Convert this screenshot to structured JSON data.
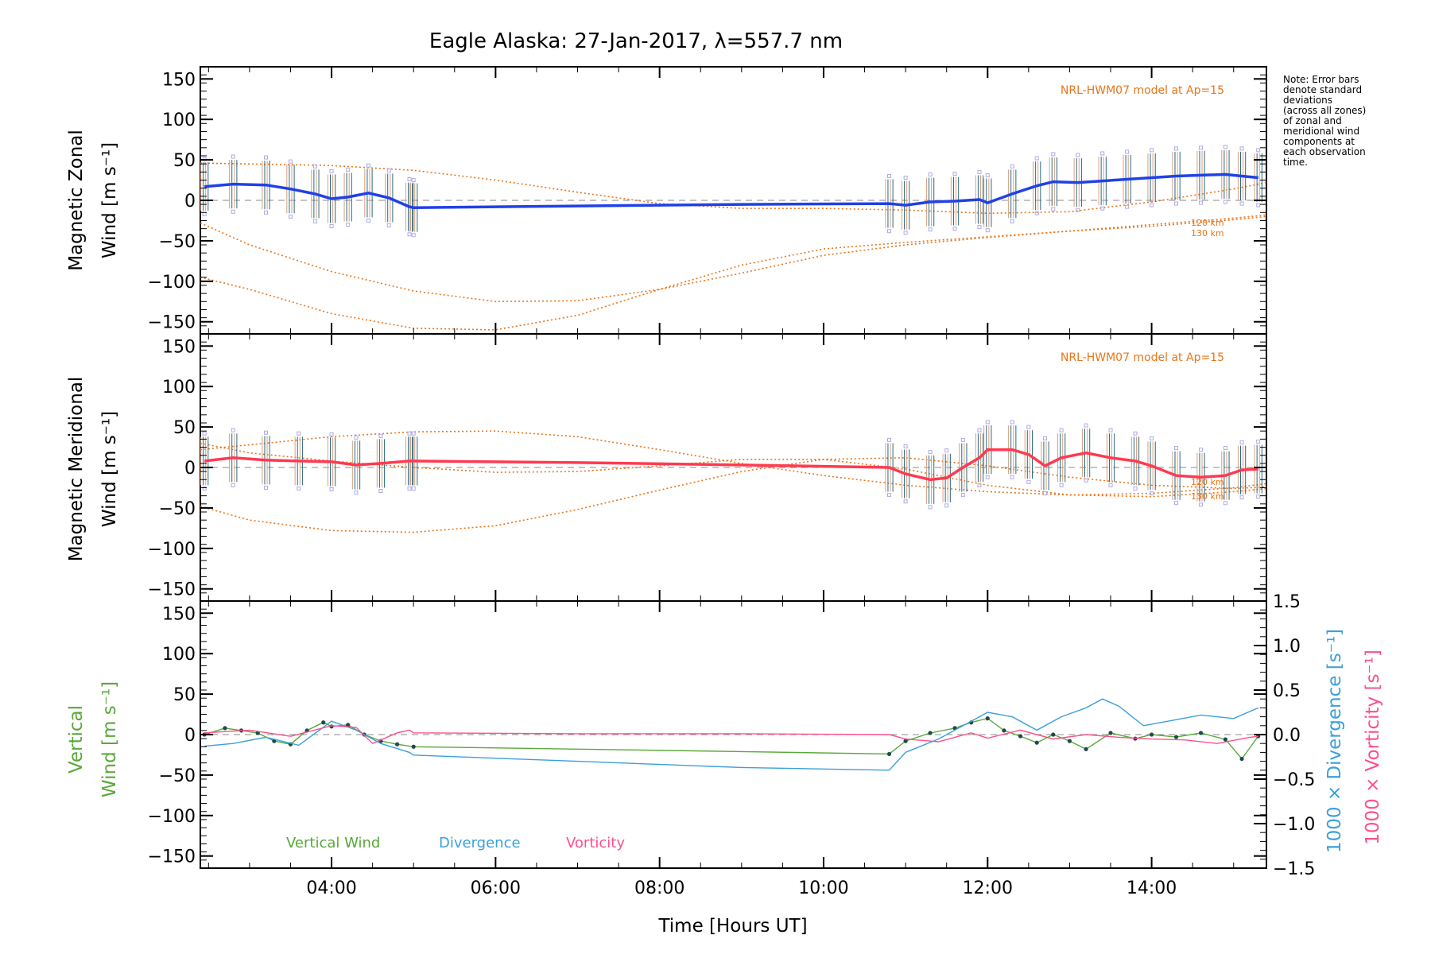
{
  "title": "Eagle Alaska: 27-Jan-2017, λ=557.7 nm",
  "note": [
    "Note: Error bars",
    "denote standard",
    "deviations",
    "(across all zones)",
    "of zonal and",
    "meridional wind",
    "components at",
    "each observation",
    "time."
  ],
  "xlabel": "Time [Hours UT]",
  "chart_data": [
    {
      "type": "line",
      "id": "zonal",
      "ylabel": [
        "Magnetic Zonal",
        "Wind [m s⁻¹]"
      ],
      "xlim": [
        2.4,
        15.4
      ],
      "ylim": [
        -165,
        165
      ],
      "y_ticks": [
        -150,
        -100,
        -50,
        0,
        50,
        100,
        150
      ],
      "y_tick_labels": [
        "−150",
        "−100",
        "−50",
        "0",
        "50",
        "100",
        "150"
      ],
      "model_label": "NRL-HWM07 model at Ap=15",
      "model_alt_labels": [
        "120 km",
        "130 km"
      ],
      "series": [
        {
          "role": "mean",
          "color": "#2040e8",
          "x": [
            2.45,
            2.8,
            3.2,
            3.5,
            3.8,
            4.0,
            4.2,
            4.45,
            4.7,
            4.95,
            5.0,
            7.0,
            9.0,
            10.8,
            11.0,
            11.3,
            11.6,
            11.9,
            12.0,
            12.3,
            12.6,
            12.8,
            13.1,
            13.4,
            13.7,
            14.0,
            14.3,
            14.6,
            14.9,
            15.1,
            15.3
          ],
          "y": [
            17,
            20,
            19,
            14,
            8,
            2,
            4,
            9,
            3,
            -8,
            -9,
            -7,
            -5,
            -4,
            -6,
            -2,
            -1,
            1,
            -3,
            8,
            18,
            23,
            22,
            24,
            26,
            28,
            30,
            31,
            32,
            30,
            28
          ]
        },
        {
          "role": "model-high",
          "color": "#e8761a",
          "x": [
            2.4,
            3.0,
            4.0,
            5.0,
            6.0,
            7.0,
            8.0,
            9.0,
            10.0,
            11.0,
            12.0,
            13.0,
            14.0,
            15.0,
            15.4
          ],
          "y": [
            46,
            45,
            43,
            37,
            25,
            10,
            -4,
            -10,
            -10,
            -12,
            -16,
            -14,
            -2,
            14,
            22
          ]
        },
        {
          "role": "model-mid",
          "color": "#e8761a",
          "x": [
            2.4,
            3.0,
            4.0,
            5.0,
            6.0,
            7.0,
            8.0,
            9.0,
            10.0,
            11.0,
            12.0,
            13.0,
            14.0,
            15.0,
            15.4
          ],
          "y": [
            -28,
            -55,
            -88,
            -112,
            -125,
            -124,
            -110,
            -90,
            -68,
            -55,
            -46,
            -38,
            -30,
            -22,
            -18
          ]
        },
        {
          "role": "model-low",
          "color": "#e8761a",
          "x": [
            2.4,
            3.0,
            4.0,
            5.0,
            6.0,
            7.0,
            8.0,
            9.0,
            10.0,
            11.0,
            12.0,
            13.0,
            14.0,
            15.0,
            15.4
          ],
          "y": [
            -95,
            -110,
            -140,
            -158,
            -160,
            -142,
            -110,
            -80,
            -60,
            -52,
            -45,
            -38,
            -32,
            -24,
            -20
          ]
        }
      ]
    },
    {
      "type": "line",
      "id": "meridional",
      "ylabel": [
        "Magnetic Meridional",
        "Wind [m s⁻¹]"
      ],
      "xlim": [
        2.4,
        15.4
      ],
      "ylim": [
        -165,
        165
      ],
      "y_ticks": [
        -150,
        -100,
        -50,
        0,
        50,
        100,
        150
      ],
      "y_tick_labels": [
        "−150",
        "−100",
        "−50",
        "0",
        "50",
        "100",
        "150"
      ],
      "model_label": "NRL-HWM07 model at Ap=15",
      "model_alt_labels": [
        "120 km",
        "130 km"
      ],
      "series": [
        {
          "role": "mean",
          "color": "#ff3a50",
          "x": [
            2.45,
            2.8,
            3.2,
            3.6,
            4.0,
            4.3,
            4.6,
            4.95,
            5.0,
            7.0,
            9.0,
            10.8,
            11.0,
            11.3,
            11.5,
            11.7,
            11.9,
            12.0,
            12.3,
            12.5,
            12.7,
            12.9,
            13.2,
            13.5,
            13.8,
            14.0,
            14.3,
            14.6,
            14.9,
            15.1,
            15.3
          ],
          "y": [
            8,
            12,
            9,
            8,
            7,
            3,
            5,
            8,
            8,
            6,
            3,
            0,
            -8,
            -15,
            -13,
            0,
            12,
            22,
            22,
            16,
            2,
            12,
            18,
            12,
            8,
            2,
            -10,
            -12,
            -10,
            -3,
            -2
          ]
        },
        {
          "role": "model-high",
          "color": "#e8761a",
          "x": [
            2.4,
            3.0,
            4.0,
            5.0,
            6.0,
            7.0,
            8.0,
            9.0,
            10.0,
            11.0,
            12.0,
            13.0,
            14.0,
            15.0,
            15.4
          ],
          "y": [
            22,
            28,
            38,
            44,
            45,
            38,
            22,
            5,
            -10,
            -22,
            -30,
            -34,
            -32,
            -25,
            -20
          ]
        },
        {
          "role": "model-mid",
          "color": "#e8761a",
          "x": [
            2.4,
            3.0,
            4.0,
            5.0,
            6.0,
            7.0,
            8.0,
            9.0,
            10.0,
            11.0,
            12.0,
            13.0,
            14.0,
            15.0,
            15.4
          ],
          "y": [
            -48,
            -65,
            -78,
            -80,
            -72,
            -52,
            -28,
            -5,
            10,
            12,
            2,
            -12,
            -22,
            -26,
            -24
          ]
        },
        {
          "role": "model-low",
          "color": "#e8761a",
          "x": [
            2.4,
            3.0,
            4.0,
            5.0,
            6.0,
            7.0,
            8.0,
            9.0,
            10.0,
            11.0,
            12.0,
            13.0,
            14.0,
            15.0,
            15.4
          ],
          "y": [
            30,
            18,
            8,
            0,
            -6,
            -5,
            2,
            10,
            10,
            -2,
            -22,
            -34,
            -36,
            -30,
            -26
          ]
        }
      ]
    },
    {
      "type": "line",
      "id": "vertical",
      "ylabel": [
        "Vertical",
        "Wind [m s⁻¹]"
      ],
      "right_ylabels": [
        "1000 × Divergence [s⁻¹]",
        "1000 × Vorticity [s⁻¹]"
      ],
      "xlim": [
        2.4,
        15.4
      ],
      "ylim": [
        -165,
        165
      ],
      "y_ticks": [
        -150,
        -100,
        -50,
        0,
        50,
        100,
        150
      ],
      "y_tick_labels": [
        "−150",
        "−100",
        "−50",
        "0",
        "50",
        "100",
        "150"
      ],
      "y2lim": [
        -1.5,
        1.5
      ],
      "y2_ticks": [
        -1.5,
        -1.0,
        -0.5,
        0.0,
        0.5,
        1.0,
        1.5
      ],
      "y2_tick_labels": [
        "−1.5",
        "−1.0",
        "−0.5",
        "0.0",
        "0.5",
        "1.0",
        "1.5"
      ],
      "x_ticks": [
        4,
        6,
        8,
        10,
        12,
        14
      ],
      "x_tick_labels": [
        "04:00",
        "06:00",
        "08:00",
        "10:00",
        "12:00",
        "14:00"
      ],
      "legend": [
        "Vertical Wind",
        "Divergence",
        "Vorticity"
      ],
      "series": [
        {
          "name": "Vertical Wind",
          "color": "#5aa83a",
          "x": [
            2.45,
            2.7,
            2.9,
            3.1,
            3.3,
            3.5,
            3.7,
            3.9,
            4.0,
            4.2,
            4.4,
            4.6,
            4.8,
            5.0,
            7.0,
            9.0,
            10.8,
            11.0,
            11.3,
            11.6,
            11.8,
            12.0,
            12.2,
            12.4,
            12.6,
            12.8,
            13.0,
            13.2,
            13.5,
            13.8,
            14.0,
            14.3,
            14.6,
            14.9,
            15.1,
            15.3
          ],
          "y": [
            0,
            8,
            5,
            2,
            -8,
            -12,
            5,
            15,
            10,
            12,
            0,
            -8,
            -12,
            -15,
            -18,
            -21,
            -24,
            -8,
            2,
            8,
            15,
            20,
            5,
            -2,
            -10,
            0,
            -8,
            -18,
            2,
            -5,
            0,
            -3,
            2,
            -6,
            -30,
            -2
          ]
        },
        {
          "name": "Divergence",
          "color": "#3aa0dc",
          "y_axis": "right",
          "x": [
            2.45,
            2.8,
            3.2,
            3.6,
            4.0,
            4.3,
            4.6,
            4.95,
            5.0,
            7.0,
            9.0,
            10.8,
            11.0,
            11.4,
            11.8,
            12.0,
            12.3,
            12.6,
            12.9,
            13.2,
            13.4,
            13.6,
            13.9,
            14.2,
            14.6,
            15.0,
            15.3
          ],
          "y": [
            -0.13,
            -0.1,
            -0.03,
            -0.12,
            0.15,
            0.05,
            -0.1,
            -0.2,
            -0.23,
            -0.3,
            -0.37,
            -0.4,
            -0.2,
            -0.05,
            0.15,
            0.25,
            0.2,
            0.05,
            0.2,
            0.3,
            0.4,
            0.32,
            0.1,
            0.15,
            0.22,
            0.18,
            0.3
          ]
        },
        {
          "name": "Vorticity",
          "color": "#ff4f8b",
          "y_axis": "right",
          "x": [
            2.45,
            3.0,
            3.5,
            4.0,
            4.3,
            4.5,
            4.8,
            4.95,
            5.0,
            7.0,
            9.0,
            10.8,
            11.0,
            11.4,
            11.8,
            12.0,
            12.4,
            12.8,
            13.2,
            13.6,
            14.0,
            14.4,
            14.8,
            15.2,
            15.3
          ],
          "y": [
            0.02,
            0.05,
            -0.02,
            0.1,
            0.08,
            -0.1,
            0.02,
            0.05,
            0.02,
            0.01,
            0.01,
            0.0,
            -0.05,
            -0.08,
            0.02,
            -0.04,
            0.05,
            -0.05,
            0.0,
            -0.03,
            -0.05,
            -0.06,
            -0.1,
            -0.03,
            -0.02
          ]
        }
      ]
    }
  ]
}
